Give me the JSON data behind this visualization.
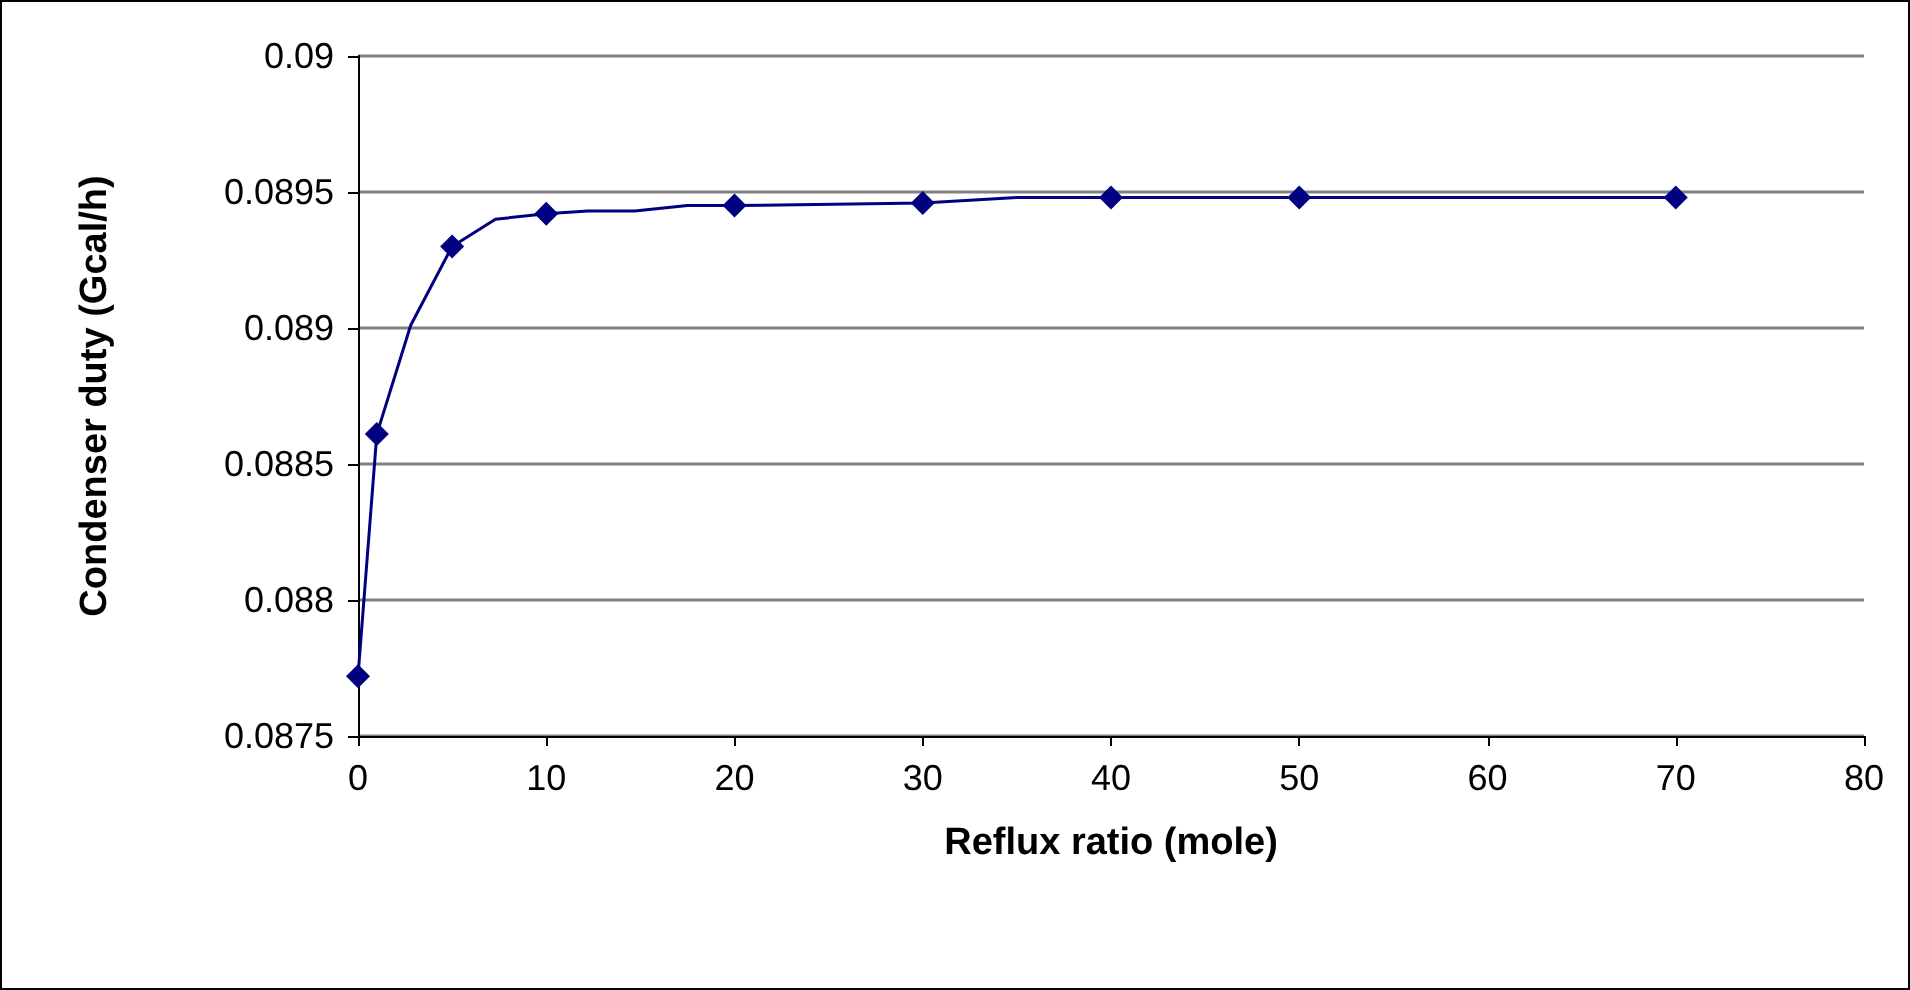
{
  "chart_data": {
    "type": "line",
    "xlabel": "Reflux ratio (mole)",
    "ylabel": "Condenser duty (Gcal/h)",
    "xlim": [
      0,
      80
    ],
    "xticks": [
      0,
      10,
      20,
      30,
      40,
      50,
      60,
      70,
      80
    ],
    "ylim": [
      0.0875,
      0.09
    ],
    "yticks": [
      {
        "value": 0.0875,
        "label": "0.0875"
      },
      {
        "value": 0.088,
        "label": "0.088"
      },
      {
        "value": 0.0885,
        "label": "0.0885"
      },
      {
        "value": 0.089,
        "label": "0.089"
      },
      {
        "value": 0.0895,
        "label": "0.0895"
      },
      {
        "value": 0.09,
        "label": "0.09"
      }
    ],
    "grid": "y",
    "series": [
      {
        "marker": "none",
        "line_style": "solid",
        "color": "#000080",
        "x": [
          0,
          1,
          2.8,
          5,
          7.3,
          10,
          12.2,
          14.7,
          17.5,
          20,
          30,
          35,
          40,
          50,
          70
        ],
        "values": [
          0.08772,
          0.08861,
          0.08901,
          0.0893,
          0.0894,
          0.08942,
          0.08943,
          0.08943,
          0.08945,
          0.08945,
          0.08946,
          0.08948,
          0.08948,
          0.08948,
          0.08948
        ]
      },
      {
        "type": "scatter",
        "marker": "diamond",
        "color": "#000080",
        "x": [
          0,
          1,
          5,
          10,
          20,
          30,
          40,
          50,
          70
        ],
        "values": [
          0.08772,
          0.08861,
          0.0893,
          0.08942,
          0.08945,
          0.08946,
          0.08948,
          0.08948,
          0.08948
        ]
      }
    ]
  }
}
